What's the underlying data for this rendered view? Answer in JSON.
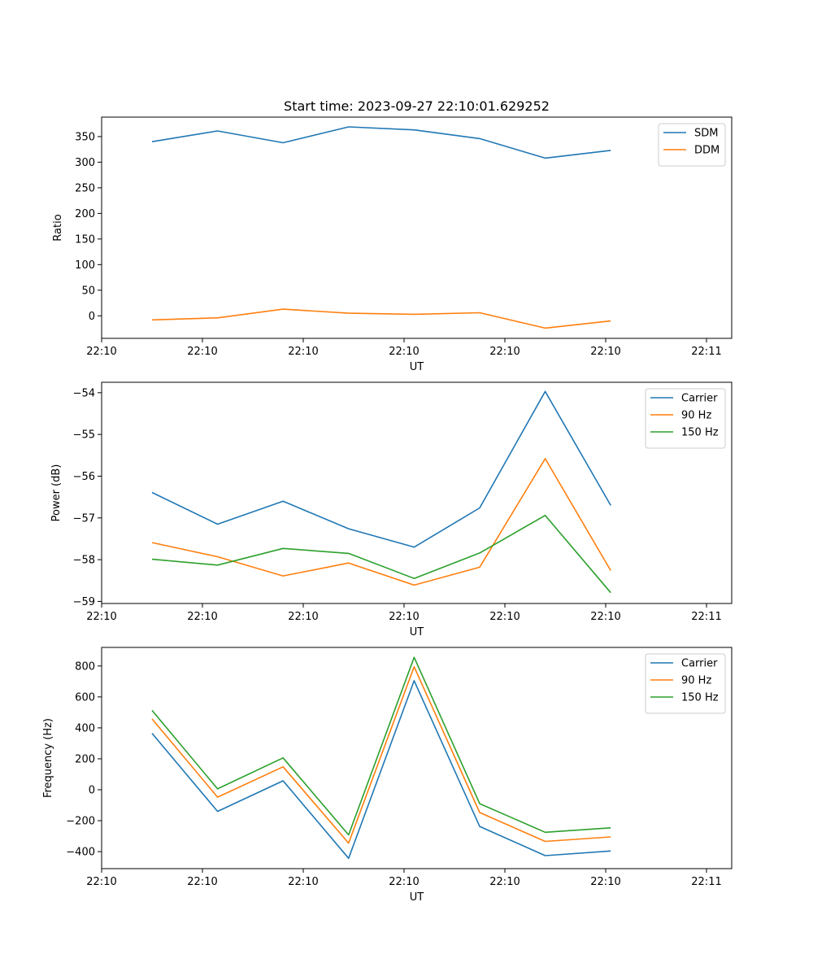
{
  "title": "Start time: 2023-09-27 22:10:01.629252",
  "chart_data": [
    {
      "type": "line",
      "ylabel": "Ratio",
      "xlabel": "UT",
      "x_tick_labels": [
        "22:10",
        "22:10",
        "22:10",
        "22:10",
        "22:10",
        "22:10",
        "22:11"
      ],
      "y_ticks": [
        0,
        50,
        100,
        150,
        200,
        250,
        300,
        350
      ],
      "ylim": [
        -44,
        388
      ],
      "xlim": [
        0,
        6.25
      ],
      "x": [
        0.5,
        1.15,
        1.8,
        2.45,
        3.1,
        3.75,
        4.4,
        5.05
      ],
      "legend": "top-right",
      "series": [
        {
          "name": "SDM",
          "color": "#1f77b4",
          "values": [
            340,
            361,
            338,
            369,
            363,
            346,
            308,
            323
          ]
        },
        {
          "name": "DDM",
          "color": "#ff7f0e",
          "values": [
            -8,
            -4,
            13,
            5,
            3,
            6,
            -24,
            -10
          ]
        }
      ]
    },
    {
      "type": "line",
      "ylabel": "Power (dB)",
      "xlabel": "UT",
      "x_tick_labels": [
        "22:10",
        "22:10",
        "22:10",
        "22:10",
        "22:10",
        "22:10",
        "22:11"
      ],
      "y_ticks": [
        -59,
        -58,
        -57,
        -56,
        -55,
        -54
      ],
      "y_tick_labels": [
        "−59",
        "−58",
        "−57",
        "−56",
        "−55",
        "−54"
      ],
      "ylim": [
        -59.05,
        -53.75
      ],
      "xlim": [
        0,
        6.25
      ],
      "x": [
        0.5,
        1.15,
        1.8,
        2.45,
        3.1,
        3.75,
        4.4,
        5.05
      ],
      "legend": "top-right",
      "series": [
        {
          "name": "Carrier",
          "color": "#1f77b4",
          "values": [
            -56.39,
            -57.15,
            -56.6,
            -57.26,
            -57.7,
            -56.76,
            -53.97,
            -56.7
          ]
        },
        {
          "name": "90 Hz",
          "color": "#ff7f0e",
          "values": [
            -57.59,
            -57.93,
            -58.39,
            -58.08,
            -58.61,
            -58.18,
            -55.58,
            -58.26
          ]
        },
        {
          "name": "150 Hz",
          "color": "#2ca02c",
          "values": [
            -57.99,
            -58.13,
            -57.73,
            -57.85,
            -58.45,
            -57.84,
            -56.94,
            -58.79
          ]
        }
      ]
    },
    {
      "type": "line",
      "ylabel": "Frequency (Hz)",
      "xlabel": "UT",
      "x_tick_labels": [
        "22:10",
        "22:10",
        "22:10",
        "22:10",
        "22:10",
        "22:10",
        "22:11"
      ],
      "y_ticks": [
        -400,
        -200,
        0,
        200,
        400,
        600,
        800
      ],
      "y_tick_labels": [
        "−400",
        "−200",
        "0",
        "200",
        "400",
        "600",
        "800"
      ],
      "ylim": [
        -510,
        920
      ],
      "xlim": [
        0,
        6.25
      ],
      "x": [
        0.5,
        1.15,
        1.8,
        2.45,
        3.1,
        3.75,
        4.4,
        5.05
      ],
      "legend": "top-right",
      "series": [
        {
          "name": "Carrier",
          "color": "#1f77b4",
          "values": [
            365,
            -140,
            58,
            -443,
            705,
            -237,
            -426,
            -396
          ]
        },
        {
          "name": "90 Hz",
          "color": "#ff7f0e",
          "values": [
            458,
            -48,
            148,
            -345,
            795,
            -147,
            -334,
            -305
          ]
        },
        {
          "name": "150 Hz",
          "color": "#2ca02c",
          "values": [
            513,
            6,
            206,
            -292,
            856,
            -90,
            -275,
            -246
          ]
        }
      ]
    }
  ]
}
